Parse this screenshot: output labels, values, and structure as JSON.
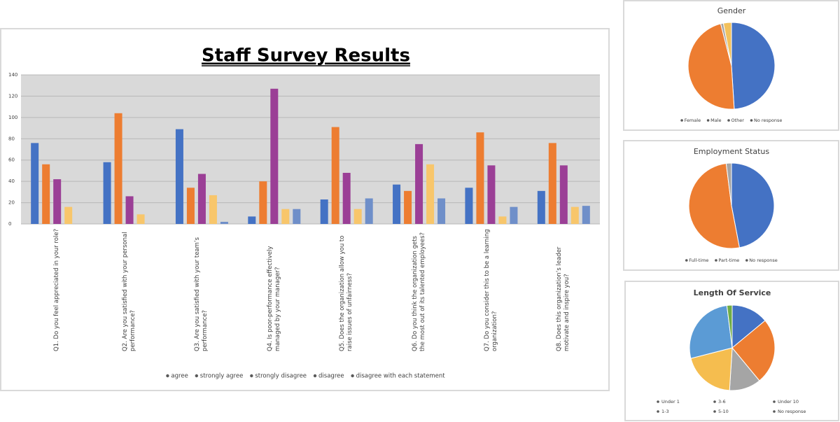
{
  "chart_data": [
    {
      "type": "bar",
      "title": "Staff Survey Results",
      "categories": [
        "Q1. Do you feel appreciated in your role?",
        "Q2. Are you satisfied with your personal performance?",
        "Q3. Are you satisfied with your team’s performance?",
        "Q4. Is poor-performance effectively managed by your manager?",
        "Q5. Does the organization allow you to raise issues of unfairness?",
        "Q6. Do you think the organization gets the most out of its talented employees?",
        "Q7. Do you consider this to be a learning organization?",
        "Q8. Does this organization’s leader motivate and inspire you?"
      ],
      "series": [
        {
          "name": "agree",
          "color": "#4472c4",
          "values": [
            76,
            58,
            89,
            7,
            23,
            37,
            34,
            31
          ]
        },
        {
          "name": "strongly agree",
          "color": "#ed7d31",
          "values": [
            56,
            104,
            34,
            40,
            91,
            31,
            86,
            76
          ]
        },
        {
          "name": "strongly disagree",
          "color": "#9b3f96",
          "values": [
            42,
            26,
            47,
            127,
            48,
            75,
            55,
            55
          ]
        },
        {
          "name": "disagree",
          "color": "#f8c66b",
          "values": [
            16,
            9,
            27,
            14,
            14,
            56,
            7,
            16
          ]
        },
        {
          "name": "disagree with each statement",
          "color": "#6f8fc9",
          "values": [
            0,
            0,
            2,
            14,
            24,
            24,
            16,
            17
          ]
        }
      ],
      "ylim": [
        0,
        140
      ],
      "yticks": [
        0,
        20,
        40,
        60,
        80,
        100,
        120,
        140
      ],
      "grid": true
    },
    {
      "type": "pie",
      "title": "Gender",
      "categories": [
        "Female",
        "Male",
        "Other",
        "No response"
      ],
      "values": [
        49,
        47,
        1,
        3
      ],
      "colors": [
        "#4472c4",
        "#ed7d31",
        "#a5a5a5",
        "#f2c15c"
      ]
    },
    {
      "type": "pie",
      "title": "Employment Status",
      "categories": [
        "Full-time",
        "Part-time",
        "No response"
      ],
      "values": [
        47,
        51,
        2
      ],
      "colors": [
        "#4472c4",
        "#ed7d31",
        "#a5a5a5"
      ]
    },
    {
      "type": "pie",
      "title": "Length Of Service",
      "categories": [
        "Under 1",
        "3-6",
        "Under 10",
        "1-3",
        "5-10",
        "No response"
      ],
      "values": [
        14,
        25,
        12,
        20,
        27,
        2
      ],
      "colors": [
        "#4472c4",
        "#ed7d31",
        "#a5a5a5",
        "#f5bd4f",
        "#5b9bd5",
        "#70ad47"
      ]
    }
  ]
}
